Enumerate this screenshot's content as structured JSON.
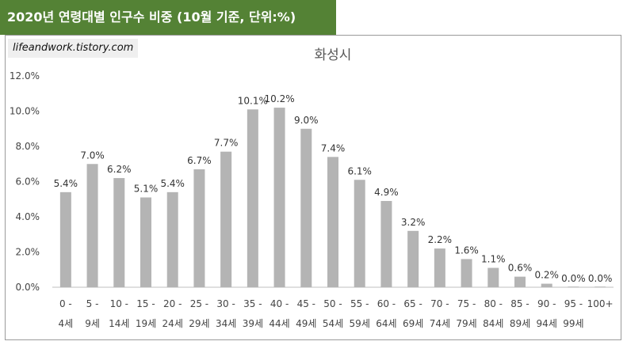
{
  "banner": {
    "title": "2020년 연령대별 인구수 비중 (10월 기준, 단위:%)"
  },
  "watermark": "lifeandwork.tistory.com",
  "chart_data": {
    "type": "bar",
    "title": "화성시",
    "xlabel": "",
    "ylabel": "",
    "categories": [
      [
        "0 -",
        "4세"
      ],
      [
        "5 -",
        "9세"
      ],
      [
        "10 -",
        "14세"
      ],
      [
        "15 -",
        "19세"
      ],
      [
        "20 -",
        "24세"
      ],
      [
        "25 -",
        "29세"
      ],
      [
        "30 -",
        "34세"
      ],
      [
        "35 -",
        "39세"
      ],
      [
        "40 -",
        "44세"
      ],
      [
        "45 -",
        "49세"
      ],
      [
        "50 -",
        "54세"
      ],
      [
        "55 -",
        "59세"
      ],
      [
        "60 -",
        "64세"
      ],
      [
        "65 -",
        "69세"
      ],
      [
        "70 -",
        "74세"
      ],
      [
        "75 -",
        "79세"
      ],
      [
        "80 -",
        "84세"
      ],
      [
        "85 -",
        "89세"
      ],
      [
        "90 -",
        "94세"
      ],
      [
        "95 -",
        "99세"
      ],
      [
        "100+",
        ""
      ]
    ],
    "values": [
      5.4,
      7.0,
      6.2,
      5.1,
      5.4,
      6.7,
      7.7,
      10.1,
      10.2,
      9.0,
      7.4,
      6.1,
      4.9,
      3.2,
      2.2,
      1.6,
      1.1,
      0.6,
      0.2,
      0.0,
      0.0
    ],
    "value_labels": [
      "5.4%",
      "7.0%",
      "6.2%",
      "5.1%",
      "5.4%",
      "6.7%",
      "7.7%",
      "10.1%",
      "10.2%",
      "9.0%",
      "7.4%",
      "6.1%",
      "4.9%",
      "3.2%",
      "2.2%",
      "1.6%",
      "1.1%",
      "0.6%",
      "0.2%",
      "0.0%",
      "0.0%"
    ],
    "ylim": [
      0,
      12
    ],
    "yticks": [
      0,
      2,
      4,
      6,
      8,
      10,
      12
    ],
    "ytick_labels": [
      "0.0%",
      "2.0%",
      "4.0%",
      "6.0%",
      "8.0%",
      "10.0%",
      "12.0%"
    ],
    "grid": false,
    "legend": "none",
    "bar_color": "#b4b4b4"
  }
}
